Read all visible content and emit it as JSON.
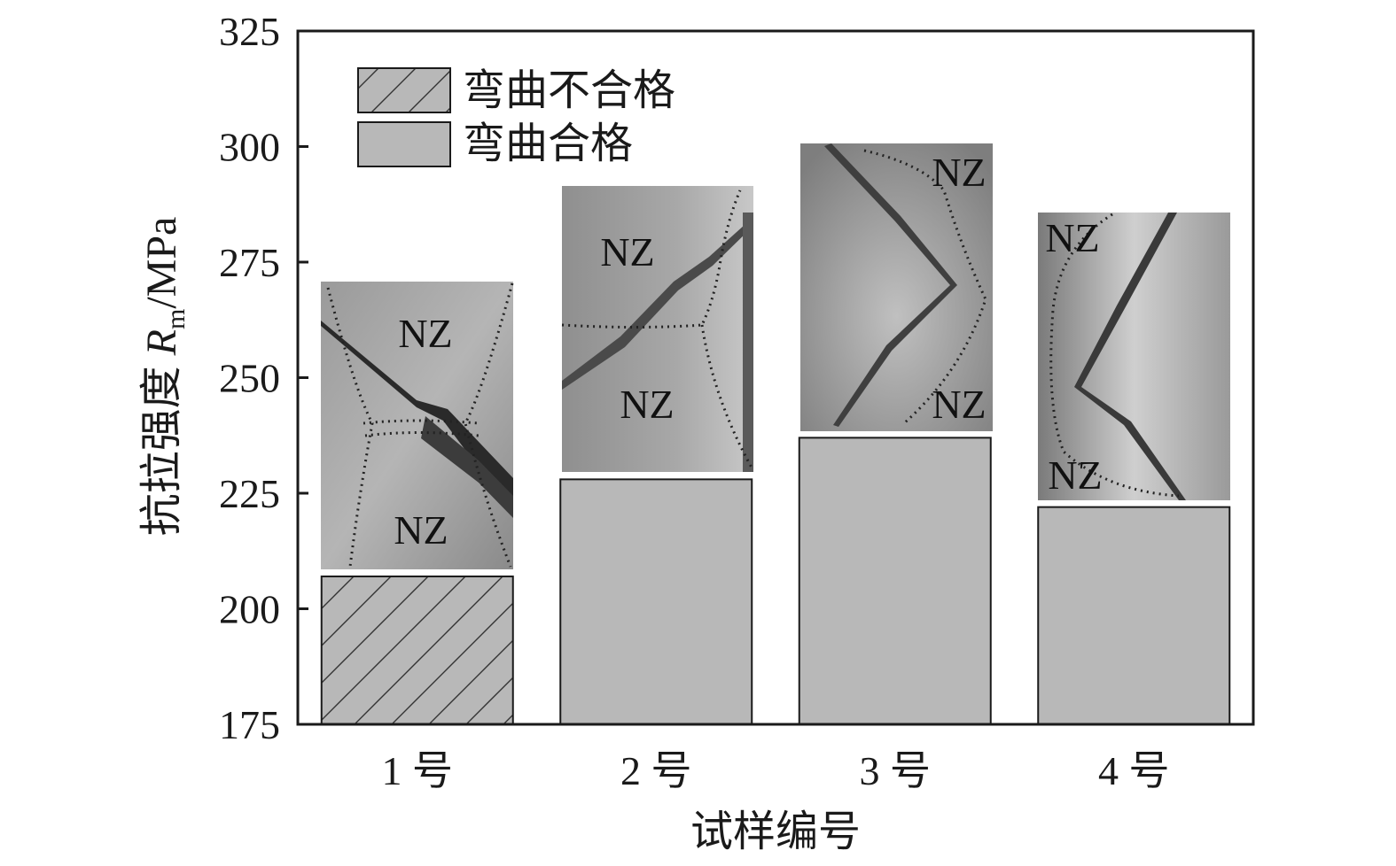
{
  "chart_data": {
    "type": "bar",
    "categories": [
      "1 号",
      "2 号",
      "3 号",
      "4 号"
    ],
    "values": [
      207,
      228,
      237,
      222
    ],
    "xlabel": "试样编号",
    "ylabel": "抗拉强度 Rm/MPa",
    "ylabel_parts": {
      "prefix": "抗拉强度 ",
      "symbol": "R",
      "subscript": "m",
      "suffix": "/MPa"
    },
    "ylim": [
      175,
      325
    ],
    "yticks": [
      "175",
      "200",
      "225",
      "250",
      "275",
      "300",
      "325"
    ],
    "grid": false,
    "legend": {
      "placement": "top-left",
      "entries": [
        {
          "label": "弯曲不合格",
          "pattern": "hatched"
        },
        {
          "label": "弯曲合格",
          "pattern": "solid"
        }
      ]
    },
    "bar_patterns": [
      "hatched",
      "solid",
      "solid",
      "solid"
    ],
    "bar_color": "#b8b8b8",
    "inset_label": "NZ",
    "colors": {
      "bar_fill": "#b8b8b8",
      "axis": "#1a1a1a",
      "photo_base": "#8c8c8c"
    }
  }
}
